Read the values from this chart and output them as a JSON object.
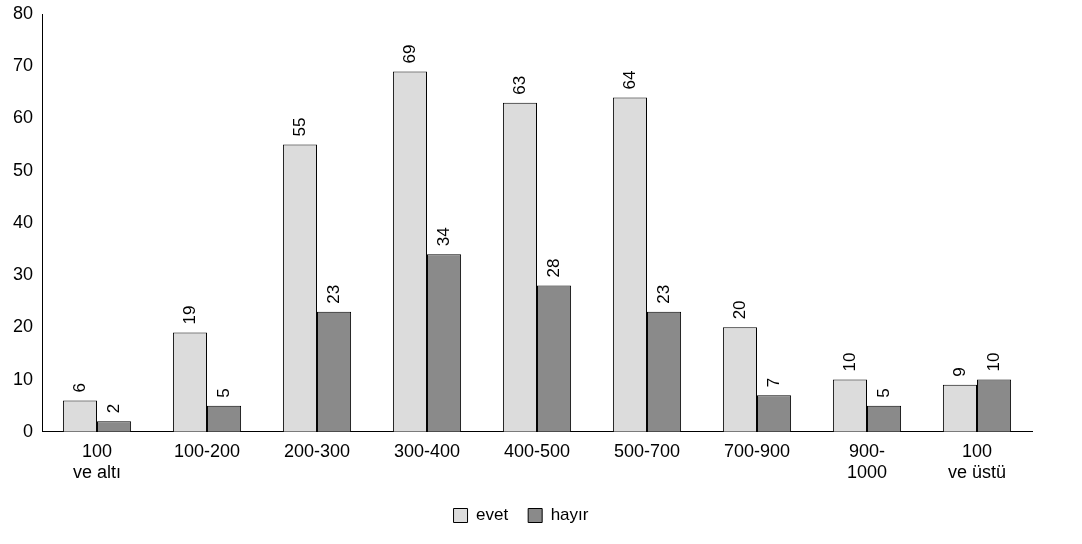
{
  "chart_data": {
    "type": "bar",
    "categories": [
      "100 ve altı",
      "100-200",
      "200-300",
      "300-400",
      "400-500",
      "500-700",
      "700-900",
      "900-1000",
      "100 ve üstü"
    ],
    "series": [
      {
        "name": "evet",
        "color": "#dcdcdc",
        "values": [
          6,
          19,
          55,
          69,
          63,
          64,
          20,
          10,
          9
        ]
      },
      {
        "name": "hayır",
        "color": "#8a8a8a",
        "values": [
          2,
          5,
          23,
          34,
          28,
          23,
          7,
          5,
          10
        ]
      }
    ],
    "ylim": [
      0,
      80
    ],
    "yticks": [
      0,
      10,
      20,
      30,
      40,
      50,
      60,
      70,
      80
    ],
    "grid": false,
    "legend": "bottom",
    "data_labels": true
  }
}
